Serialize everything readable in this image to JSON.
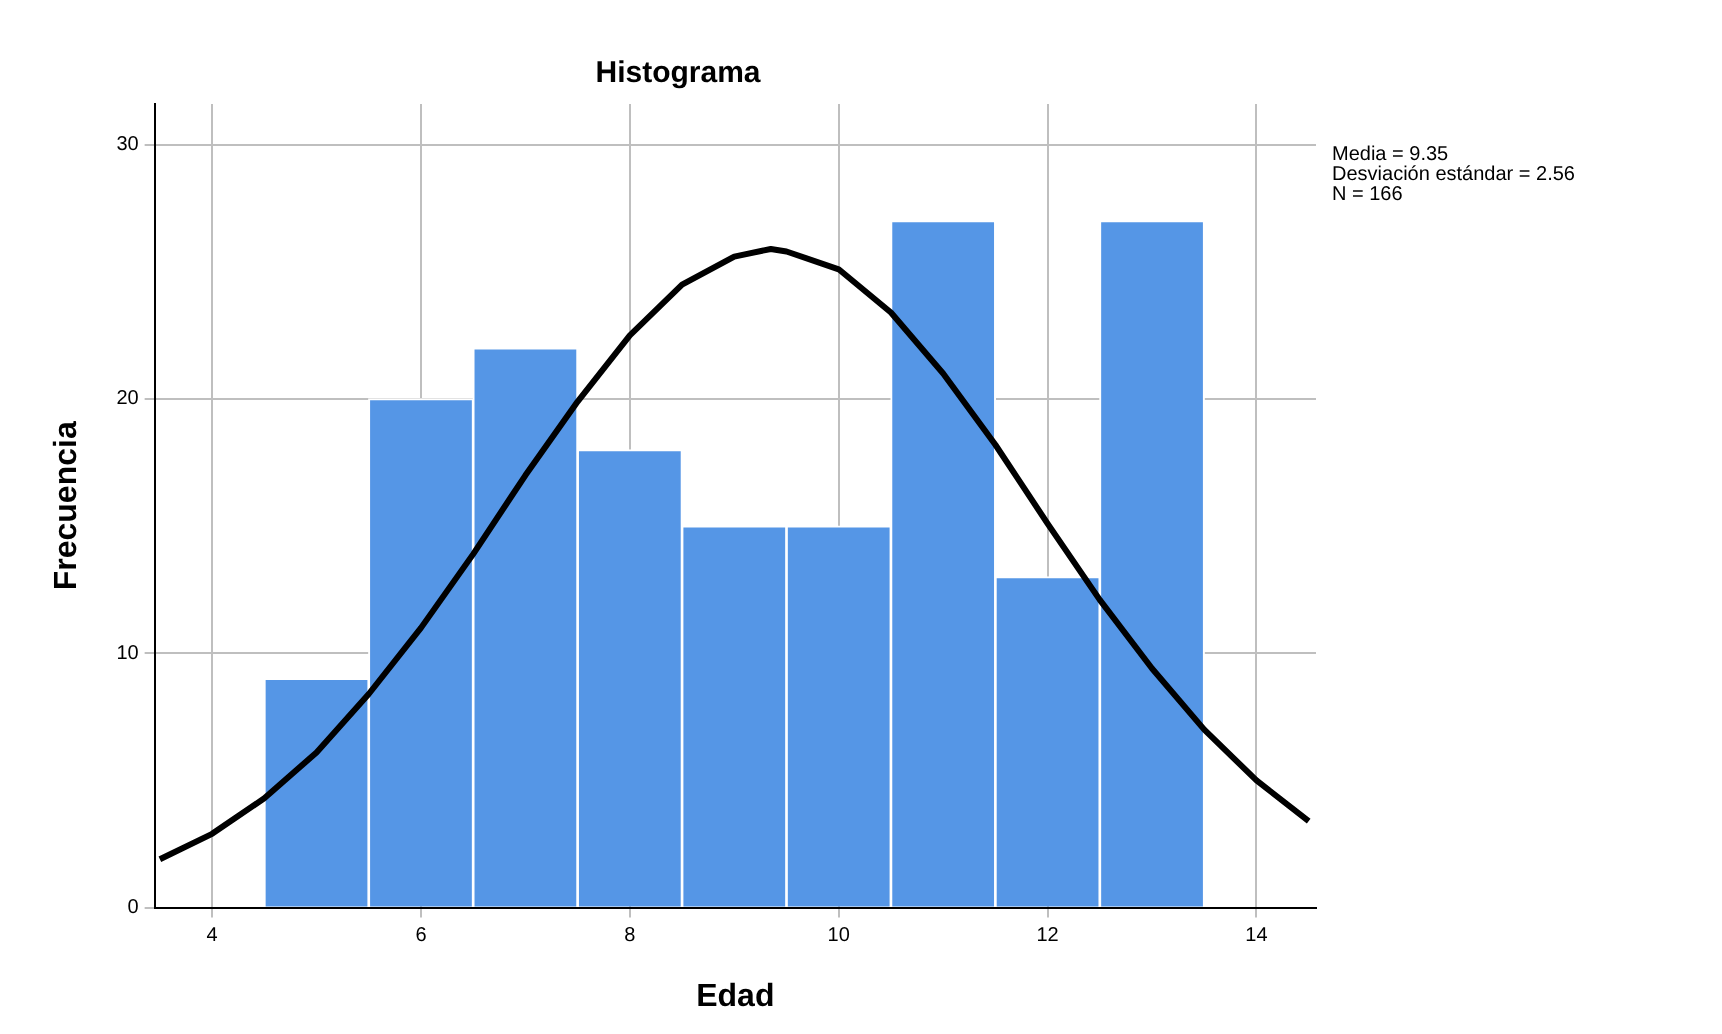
{
  "chart_data": {
    "type": "histogram",
    "title": "Histograma",
    "xlabel": "Edad",
    "ylabel": "Frecuencia",
    "bins": [
      4.5,
      5.5,
      6.5,
      7.5,
      8.5,
      9.5,
      10.5,
      11.5,
      12.5,
      13.5
    ],
    "values": [
      9,
      20,
      22,
      18,
      15,
      15,
      27,
      13,
      27
    ],
    "color": "#5596e6",
    "series": [
      {
        "type": "line",
        "color": "#000000",
        "x": [
          3.5,
          4,
          4.5,
          5,
          5.5,
          6,
          6.5,
          7,
          7.5,
          8,
          8.5,
          9,
          9.35,
          9.5,
          10,
          10.5,
          11,
          11.5,
          12,
          12.5,
          13,
          13.5,
          14,
          14.5
        ],
        "values": [
          1.9,
          2.9,
          4.3,
          6.1,
          8.4,
          11.0,
          13.9,
          17.0,
          19.9,
          22.5,
          24.5,
          25.6,
          25.9,
          25.8,
          25.1,
          23.4,
          21.0,
          18.2,
          15.1,
          12.1,
          9.4,
          7.0,
          5.0,
          3.4
        ]
      }
    ],
    "xlim": [
      3.45,
      14.57
    ],
    "xticks": [
      4,
      6,
      8,
      10,
      12,
      14
    ],
    "ylim": [
      0,
      31.6
    ],
    "yticks": [
      0,
      10,
      20,
      30
    ],
    "grid": true,
    "legend": false,
    "annotations": [
      "Media = 9.35",
      "Desviación estándar = 2.56",
      "N = 166"
    ]
  }
}
